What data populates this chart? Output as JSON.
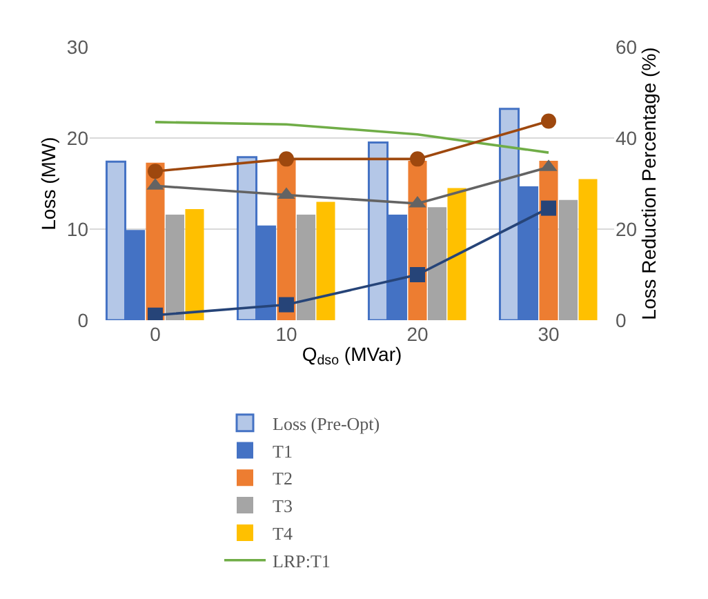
{
  "chart_data": {
    "type": "bar",
    "xlabel": "Q$_{dso}$ (MVar)",
    "ylabel": "Loss (MW)",
    "y2label": "Loss Reduction Percentage (%)",
    "categories": [
      "0",
      "10",
      "20",
      "30"
    ],
    "series": [
      {
        "name": "Loss (Pre-Opt)",
        "color": "#b4c7e7",
        "values": [
          17.4,
          17.9,
          19.5,
          23.2
        ]
      },
      {
        "name": "T1",
        "color": "#4472c4",
        "values": [
          9.9,
          10.4,
          11.6,
          14.7
        ]
      },
      {
        "name": "T2",
        "color": "#ed7d31",
        "values": [
          17.3,
          17.6,
          17.5,
          17.5
        ]
      },
      {
        "name": "T3",
        "color": "#a5a5a5",
        "values": [
          11.6,
          11.6,
          12.4,
          13.2
        ]
      },
      {
        "name": "T4",
        "color": "#ffc000",
        "values": [
          12.2,
          13.0,
          14.5,
          15.5
        ]
      },
      {
        "name": "LRP:T1",
        "type": "line",
        "axis": "y2",
        "color": "#70ad47",
        "marker": "none",
        "values": [
          43.5,
          43.0,
          40.8,
          36.8
        ]
      },
      {
        "type": "line",
        "axis": "y2",
        "color": "#264478",
        "marker": "square",
        "values": [
          1.1,
          3.4,
          10.0,
          24.6
        ]
      },
      {
        "type": "line",
        "axis": "y2",
        "color": "#9e480e",
        "marker": "circle",
        "values": [
          32.7,
          35.4,
          35.4,
          43.7
        ]
      },
      {
        "type": "line",
        "axis": "y2",
        "color": "#636363",
        "marker": "triangle",
        "values": [
          29.5,
          27.5,
          25.6,
          33.6
        ]
      }
    ],
    "ylim": [
      0,
      30
    ],
    "yticks": [
      0,
      10,
      20,
      30
    ],
    "y2lim": [
      0,
      60
    ],
    "y2ticks": [
      0,
      20,
      40,
      60
    ],
    "grid": "y",
    "legend": "bottom"
  }
}
